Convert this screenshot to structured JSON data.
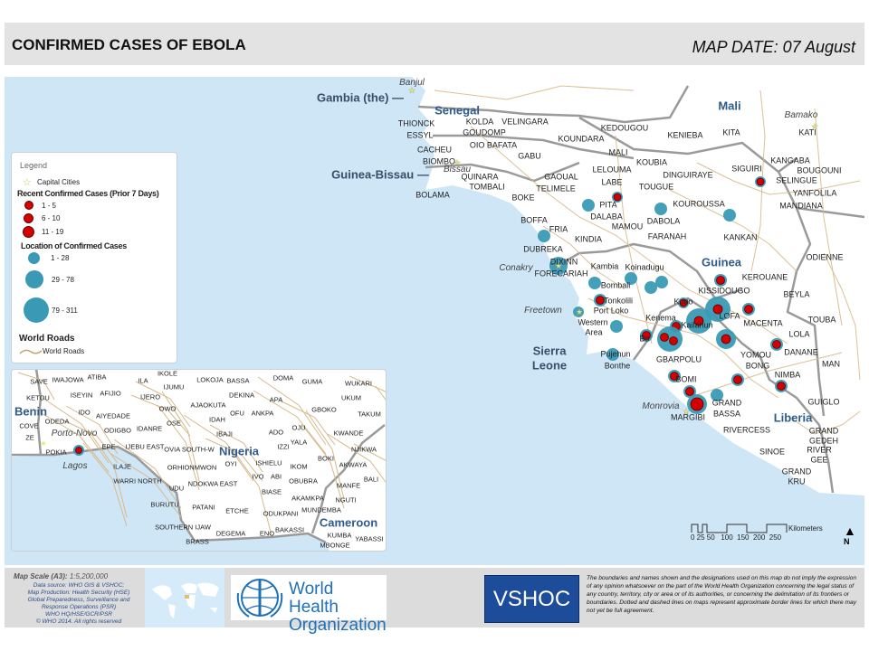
{
  "header": {
    "title": "CONFIRMED CASES OF EBOLA",
    "map_date": "MAP DATE: 07 August"
  },
  "colors": {
    "sea": "#cfe6f7",
    "land": "#ffffff",
    "confirmed_cases": "#3a9ab5",
    "recent_cases": "#d40000",
    "roads": "#d7b98a",
    "borders": "#9a9a9a",
    "country_label": "#2f5b8a"
  },
  "legend": {
    "title": "Legend",
    "capital_cities": "Capital Cities",
    "recent_heading": "Recent Confirmed Cases (Prior 7 Days)",
    "recent_classes": [
      "1 - 5",
      "6 - 10",
      "11 - 19"
    ],
    "location_heading": "Location of Confirmed Cases",
    "location_classes": [
      "1 - 28",
      "29 - 78",
      "79 - 311"
    ],
    "roads_heading": "World Roads",
    "roads_item": "World Roads"
  },
  "main_labels": [
    {
      "text": "Gambia (the) —",
      "kind": "countryL"
    },
    {
      "text": "Guinea-Bissau —",
      "kind": "countryL"
    },
    {
      "text": "Senegal",
      "kind": "country"
    },
    {
      "text": "Mali",
      "kind": "country"
    },
    {
      "text": "Guinea",
      "kind": "country"
    },
    {
      "text": "Sierra",
      "kind": "countryL"
    },
    {
      "text": "Leone",
      "kind": "countryL"
    },
    {
      "text": "Liberia",
      "kind": "country"
    },
    {
      "text": "Banjul",
      "kind": "capital"
    },
    {
      "text": "Bissau",
      "kind": "capital"
    },
    {
      "text": "Bamako",
      "kind": "capital"
    },
    {
      "text": "Conakry",
      "kind": "capital"
    },
    {
      "text": "Freetown",
      "kind": "capital"
    },
    {
      "text": "Monrovia",
      "kind": "capital"
    },
    {
      "text": "THIONCK",
      "kind": "d"
    },
    {
      "text": "ESSYL",
      "kind": "d"
    },
    {
      "text": "KOLDA",
      "kind": "d"
    },
    {
      "text": "VELINGARA",
      "kind": "d"
    },
    {
      "text": "GOUDOMP",
      "kind": "d"
    },
    {
      "text": "KEDOUGOU",
      "kind": "d"
    },
    {
      "text": "KOUNDARA",
      "kind": "d"
    },
    {
      "text": "KENIEBA",
      "kind": "d"
    },
    {
      "text": "KITA",
      "kind": "d"
    },
    {
      "text": "KATI",
      "kind": "d"
    },
    {
      "text": "CACHEU",
      "kind": "d"
    },
    {
      "text": "BIOMBO",
      "kind": "d"
    },
    {
      "text": "OIO BAFATA",
      "kind": "d"
    },
    {
      "text": "GABU",
      "kind": "d"
    },
    {
      "text": "MALI",
      "kind": "d"
    },
    {
      "text": "KOUBIA",
      "kind": "d"
    },
    {
      "text": "QUINARA",
      "kind": "d"
    },
    {
      "text": "LELOUMA",
      "kind": "d"
    },
    {
      "text": "SIGUIRI",
      "kind": "d"
    },
    {
      "text": "KANGABA",
      "kind": "d"
    },
    {
      "text": "BOUGOUNI",
      "kind": "d"
    },
    {
      "text": "SELINGUE",
      "kind": "d"
    },
    {
      "text": "DINGUIRAYE",
      "kind": "d"
    },
    {
      "text": "GAOUAL",
      "kind": "d"
    },
    {
      "text": "TOMBALI",
      "kind": "d"
    },
    {
      "text": "TELIMELE",
      "kind": "d"
    },
    {
      "text": "LABE",
      "kind": "d"
    },
    {
      "text": "TOUGUE",
      "kind": "d"
    },
    {
      "text": "YANFOLILA",
      "kind": "d"
    },
    {
      "text": "BOLAMA",
      "kind": "d"
    },
    {
      "text": "BOKE",
      "kind": "d"
    },
    {
      "text": "PITA",
      "kind": "d"
    },
    {
      "text": "KOUROUSSA",
      "kind": "d"
    },
    {
      "text": "MANDIANA",
      "kind": "d"
    },
    {
      "text": "DALABA",
      "kind": "d"
    },
    {
      "text": "DABOLA",
      "kind": "d"
    },
    {
      "text": "MAMOU",
      "kind": "d"
    },
    {
      "text": "BOFFA",
      "kind": "d"
    },
    {
      "text": "FRIA",
      "kind": "d"
    },
    {
      "text": "FARANAH",
      "kind": "d"
    },
    {
      "text": "KANKAN",
      "kind": "d"
    },
    {
      "text": "KINDIA",
      "kind": "d"
    },
    {
      "text": "DUBREKA",
      "kind": "d"
    },
    {
      "text": "DIXINN",
      "kind": "d"
    },
    {
      "text": "Kambia",
      "kind": "d"
    },
    {
      "text": "FORECARIAH",
      "kind": "d"
    },
    {
      "text": "Koinadugu",
      "kind": "d"
    },
    {
      "text": "KEROUANE",
      "kind": "d"
    },
    {
      "text": "Bombali",
      "kind": "d"
    },
    {
      "text": "KISSIDOUGO",
      "kind": "d"
    },
    {
      "text": "Tonkolili",
      "kind": "d"
    },
    {
      "text": "BEYLA",
      "kind": "d"
    },
    {
      "text": "Kono",
      "kind": "d"
    },
    {
      "text": "Port Loko",
      "kind": "d"
    },
    {
      "text": "Western",
      "kind": "d"
    },
    {
      "text": "Area",
      "kind": "d"
    },
    {
      "text": "Kenema",
      "kind": "d"
    },
    {
      "text": "Kailahun",
      "kind": "d"
    },
    {
      "text": "LOFA",
      "kind": "d"
    },
    {
      "text": "MACENTA",
      "kind": "d"
    },
    {
      "text": "Bo",
      "kind": "d"
    },
    {
      "text": "LOLA",
      "kind": "d"
    },
    {
      "text": "Pujehun",
      "kind": "d"
    },
    {
      "text": "Bonthe",
      "kind": "d"
    },
    {
      "text": "GBARPOLU",
      "kind": "d"
    },
    {
      "text": "YOMOU",
      "kind": "d"
    },
    {
      "text": "BONG",
      "kind": "d"
    },
    {
      "text": "NIMBA",
      "kind": "d"
    },
    {
      "text": "BOMI",
      "kind": "d"
    },
    {
      "text": "GRAND",
      "kind": "d"
    },
    {
      "text": "BASSA",
      "kind": "d"
    },
    {
      "text": "MARGIBI",
      "kind": "d"
    },
    {
      "text": "ODIENNE",
      "kind": "d"
    },
    {
      "text": "TOUBA",
      "kind": "d"
    },
    {
      "text": "DANANE",
      "kind": "d"
    },
    {
      "text": "MAN",
      "kind": "d"
    },
    {
      "text": "GUIGLO",
      "kind": "d"
    },
    {
      "text": "RIVERCESS",
      "kind": "d"
    },
    {
      "text": "GRAND",
      "kind": "d"
    },
    {
      "text": "GEDEH",
      "kind": "d"
    },
    {
      "text": "RIVER",
      "kind": "d"
    },
    {
      "text": "GEE",
      "kind": "d"
    },
    {
      "text": "SINOE",
      "kind": "d"
    },
    {
      "text": "GRAND",
      "kind": "d"
    },
    {
      "text": "KRU",
      "kind": "d"
    }
  ],
  "inset_labels": [
    {
      "text": "Benin",
      "kind": "country"
    },
    {
      "text": "Nigeria",
      "kind": "country"
    },
    {
      "text": "Cameroon",
      "kind": "country"
    },
    {
      "text": "Porto-Novo",
      "kind": "capital"
    },
    {
      "text": "Lagos",
      "kind": "capital"
    },
    {
      "text": "SAVE",
      "kind": "d"
    },
    {
      "text": "IWAJOWA",
      "kind": "d"
    },
    {
      "text": "ATIBA",
      "kind": "d"
    },
    {
      "text": "IKOLE",
      "kind": "d"
    },
    {
      "text": "ILA",
      "kind": "d"
    },
    {
      "text": "LOKOJA",
      "kind": "d"
    },
    {
      "text": "BASSA",
      "kind": "d"
    },
    {
      "text": "DOMA",
      "kind": "d"
    },
    {
      "text": "GUMA",
      "kind": "d"
    },
    {
      "text": "WUKARI",
      "kind": "d"
    },
    {
      "text": "IJUMU",
      "kind": "d"
    },
    {
      "text": "ISEYIN",
      "kind": "d"
    },
    {
      "text": "AFIJIO",
      "kind": "d"
    },
    {
      "text": "IJERO",
      "kind": "d"
    },
    {
      "text": "DEKINA",
      "kind": "d"
    },
    {
      "text": "APA",
      "kind": "d"
    },
    {
      "text": "UKUM",
      "kind": "d"
    },
    {
      "text": "KETOU",
      "kind": "d"
    },
    {
      "text": "IDO",
      "kind": "d"
    },
    {
      "text": "OWO",
      "kind": "d"
    },
    {
      "text": "AJAOKUTA",
      "kind": "d"
    },
    {
      "text": "OFU",
      "kind": "d"
    },
    {
      "text": "ANKPA",
      "kind": "d"
    },
    {
      "text": "GBOKO",
      "kind": "d"
    },
    {
      "text": "TAKUM",
      "kind": "d"
    },
    {
      "text": "COVE",
      "kind": "d"
    },
    {
      "text": "ODEDA",
      "kind": "d"
    },
    {
      "text": "AIYEDADE",
      "kind": "d"
    },
    {
      "text": "OSE",
      "kind": "d"
    },
    {
      "text": "IDAH",
      "kind": "d"
    },
    {
      "text": "ODIGBO",
      "kind": "d"
    },
    {
      "text": "IDANRE",
      "kind": "d"
    },
    {
      "text": "IBAJI",
      "kind": "d"
    },
    {
      "text": "ADO",
      "kind": "d"
    },
    {
      "text": "OJU",
      "kind": "d"
    },
    {
      "text": "KWANDE",
      "kind": "d"
    },
    {
      "text": "ZE",
      "kind": "d"
    },
    {
      "text": "YALA",
      "kind": "d"
    },
    {
      "text": "EPE",
      "kind": "d"
    },
    {
      "text": "IJEBU EAST",
      "kind": "d"
    },
    {
      "text": "OVIA SOUTH-W",
      "kind": "d"
    },
    {
      "text": "IZZI",
      "kind": "d"
    },
    {
      "text": "NJIKWA",
      "kind": "d"
    },
    {
      "text": "POKIA",
      "kind": "d"
    },
    {
      "text": "ILAJE",
      "kind": "d"
    },
    {
      "text": "ORHIONMWON",
      "kind": "d"
    },
    {
      "text": "OYI",
      "kind": "d"
    },
    {
      "text": "ISHIELU",
      "kind": "d"
    },
    {
      "text": "IKOM",
      "kind": "d"
    },
    {
      "text": "BOKI",
      "kind": "d"
    },
    {
      "text": "AKWAYA",
      "kind": "d"
    },
    {
      "text": "BALI",
      "kind": "d"
    },
    {
      "text": "WARRI NORTH",
      "kind": "d"
    },
    {
      "text": "IVO",
      "kind": "d"
    },
    {
      "text": "ABI",
      "kind": "d"
    },
    {
      "text": "OBUBRA",
      "kind": "d"
    },
    {
      "text": "MANFE",
      "kind": "d"
    },
    {
      "text": "UDU",
      "kind": "d"
    },
    {
      "text": "NDOKWA EAST",
      "kind": "d"
    },
    {
      "text": "BIASE",
      "kind": "d"
    },
    {
      "text": "AKAMKPA",
      "kind": "d"
    },
    {
      "text": "NGUTI",
      "kind": "d"
    },
    {
      "text": "BURUTU",
      "kind": "d"
    },
    {
      "text": "PATANI",
      "kind": "d"
    },
    {
      "text": "ETCHE",
      "kind": "d"
    },
    {
      "text": "ODUKPANI",
      "kind": "d"
    },
    {
      "text": "MUNDEMBA",
      "kind": "d"
    },
    {
      "text": "SOUTHERN IJAW",
      "kind": "d"
    },
    {
      "text": "DEGEMA",
      "kind": "d"
    },
    {
      "text": "ENO",
      "kind": "d"
    },
    {
      "text": "BAKASSI",
      "kind": "d"
    },
    {
      "text": "KUMBA",
      "kind": "d"
    },
    {
      "text": "YABASSI",
      "kind": "d"
    },
    {
      "text": "BRASS",
      "kind": "d"
    },
    {
      "text": "MBONGE",
      "kind": "d"
    }
  ],
  "scale_bar": {
    "ticks": "0 25 50   100  150  200  250",
    "unit": "Kilometers",
    "north": "N"
  },
  "footer": {
    "map_scale_label": "Map Scale (A3):",
    "map_scale_value": "1:5,200,000",
    "source_lines": [
      "Data source: WHO GIS & VSHOC;",
      "Map Production: Health Security (HSE)",
      "Global Preparedness, Surveillance and",
      "Response Operations (PSR)",
      "WHO HQ/HSE/GCR/PSR",
      "© WHO 2014. All rights reserved"
    ],
    "who_logo": "World Health Organization",
    "who_line1": "World Health",
    "who_line2": "Organization",
    "vshoc": "VSHOC",
    "disclaimer": "The boundaries and names shown and the designations used on this map do not imply the expression of any opinion whatsoever on the part of the World Health Organization concerning the legal status of any country, territory, city or area or of its authorities, or concerning the delimitation of its frontiers or boundaries. Dotted and dashed lines on maps represent approximate border lines for which there may not yet be full agreement."
  }
}
